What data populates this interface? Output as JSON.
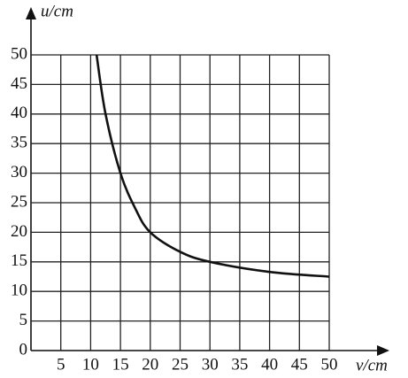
{
  "chart_data": {
    "type": "line",
    "x_label": "v/cm",
    "y_label": "u/cm",
    "x": [
      11,
      12.5,
      15,
      17.5,
      20,
      25,
      30,
      40,
      50
    ],
    "values": [
      50,
      40,
      30,
      24,
      20,
      16.7,
      15,
      13.3,
      12.5
    ],
    "color": "#111111",
    "xlim": [
      0,
      50
    ],
    "ylim": [
      0,
      50
    ],
    "xticks": [
      5,
      10,
      15,
      20,
      25,
      30,
      35,
      40,
      45,
      50
    ],
    "yticks": [
      0,
      5,
      10,
      15,
      20,
      25,
      30,
      35,
      40,
      45,
      50
    ],
    "grid": true
  }
}
